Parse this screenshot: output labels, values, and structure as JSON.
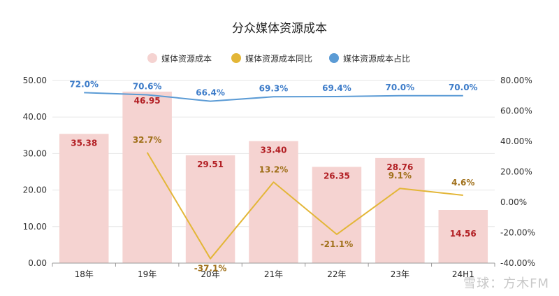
{
  "chart_data": {
    "type": "bar",
    "title": "分众媒体资源成本",
    "categories": [
      "18年",
      "19年",
      "20年",
      "21年",
      "22年",
      "23年",
      "24H1"
    ],
    "series": [
      {
        "name": "媒体资源成本",
        "kind": "bar",
        "axis": "left",
        "values": [
          35.38,
          46.95,
          29.51,
          33.4,
          26.35,
          28.76,
          14.56
        ],
        "labels": [
          "35.38",
          "46.95",
          "29.51",
          "33.40",
          "26.35",
          "28.76",
          "14.56"
        ],
        "color": "#f5d3d1"
      },
      {
        "name": "媒体资源成本同比",
        "kind": "line",
        "axis": "right",
        "values": [
          null,
          32.7,
          -37.1,
          13.2,
          -21.1,
          9.1,
          4.6
        ],
        "labels": [
          "",
          "32.7%",
          "-37.1%",
          "13.2%",
          "-21.1%",
          "9.1%",
          "4.6%"
        ],
        "color": "#e3b637"
      },
      {
        "name": "媒体资源成本占比",
        "kind": "line",
        "axis": "right",
        "values": [
          72.0,
          70.6,
          66.4,
          69.3,
          69.4,
          70.0,
          70.0
        ],
        "labels": [
          "72.0%",
          "70.6%",
          "66.4%",
          "69.3%",
          "69.4%",
          "70.0%",
          "70.0%"
        ],
        "color": "#5b9bd5"
      }
    ],
    "y_left": {
      "range": [
        0,
        50
      ],
      "ticks": [
        "0.00",
        "10.00",
        "20.00",
        "30.00",
        "40.00",
        "50.00"
      ]
    },
    "y_right": {
      "range": [
        -40,
        80
      ],
      "ticks": [
        "-40.00%",
        "-20.00%",
        "0.00%",
        "20.00%",
        "40.00%",
        "60.00%",
        "80.00%"
      ]
    },
    "legend_position": "top-center",
    "grid": true
  },
  "legend_dot_colors": [
    "#f5d3d1",
    "#e3b637",
    "#5b9bd5"
  ],
  "watermark": "雪球：方木FM"
}
